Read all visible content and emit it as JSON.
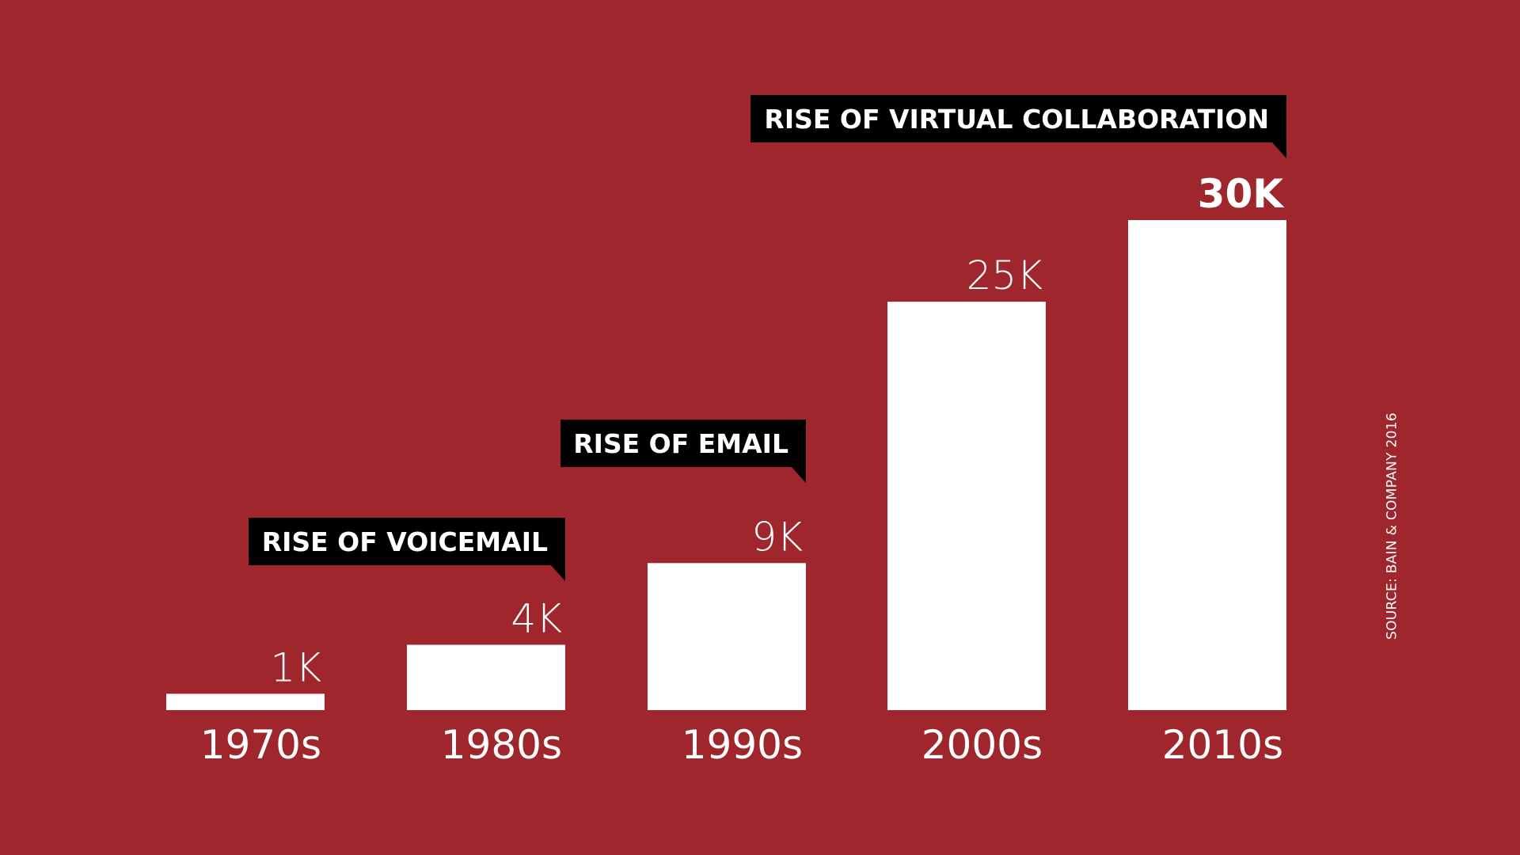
{
  "colors": {
    "background": "#9E262C",
    "bar": "#FFFFFF",
    "callout_bg": "#000000",
    "text": "#FFFFFF"
  },
  "source": "SOURCE: BAIN & COMPANY 2016",
  "chart_data": {
    "type": "bar",
    "title": "",
    "xlabel": "",
    "ylabel": "",
    "categories": [
      "1970s",
      "1980s",
      "1990s",
      "2000s",
      "2010s"
    ],
    "values": [
      1000,
      4000,
      9000,
      25000,
      30000
    ],
    "value_labels": [
      "1K",
      "4K",
      "9K",
      "25K",
      "30K"
    ],
    "emphasized_index": 4,
    "ylim": [
      0,
      30000
    ],
    "grid": false,
    "legend": "none",
    "annotations": [
      {
        "text": "RISE OF VOICEMAIL",
        "category": "1980s"
      },
      {
        "text": "RISE OF EMAIL",
        "category": "1990s"
      },
      {
        "text": "RISE OF VIRTUAL COLLABORATION",
        "category": "2010s"
      }
    ]
  }
}
